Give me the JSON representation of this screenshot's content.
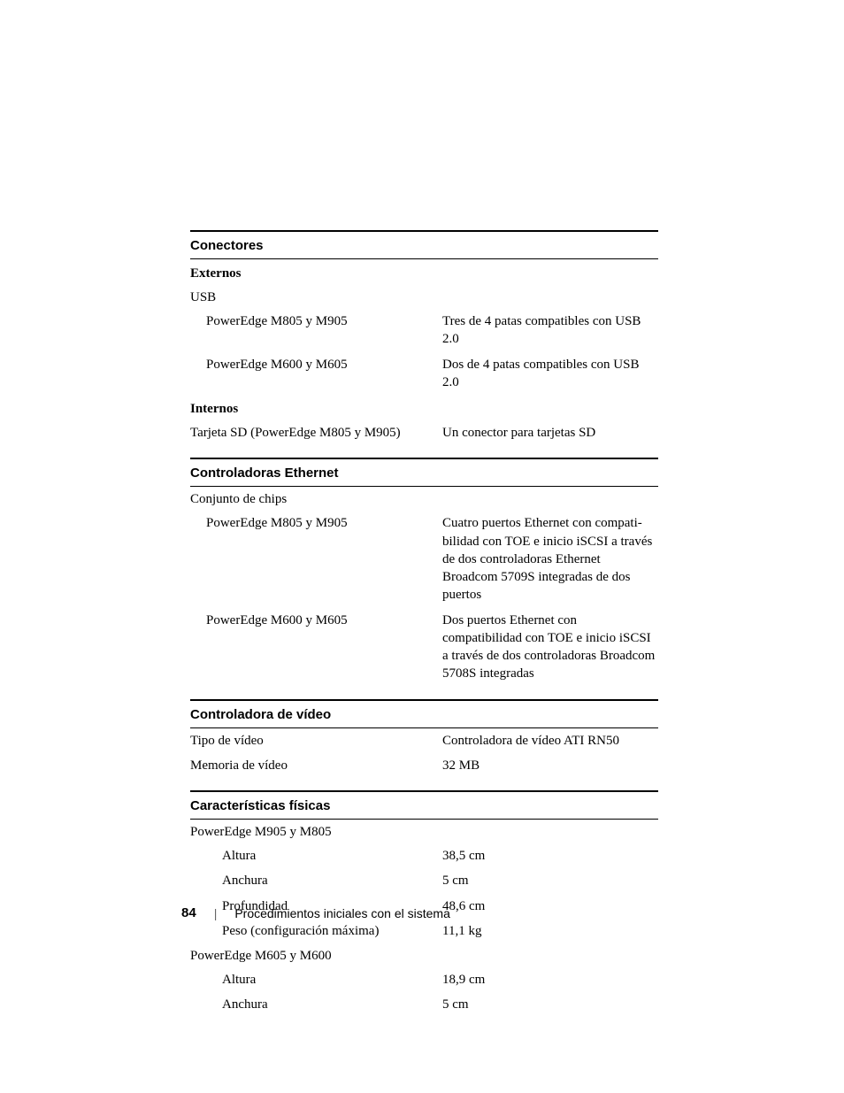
{
  "sections": {
    "conectores": {
      "header": "Conectores",
      "externos_label": "Externos",
      "usb_label": "USB",
      "usb_rows": [
        {
          "left": "PowerEdge M805 y M905",
          "right": "Tres de 4 patas compatibles con USB 2.0"
        },
        {
          "left": "PowerEdge M600 y M605",
          "right": "Dos de 4 patas compatibles con USB 2.0"
        }
      ],
      "internos_label": "Internos",
      "sd_row": {
        "left": "Tarjeta SD (PowerEdge M805 y M905)",
        "right": "Un conector para tarjetas SD"
      }
    },
    "ethernet": {
      "header": "Controladoras Ethernet",
      "chipset_label": "Conjunto de chips",
      "rows": [
        {
          "left": "PowerEdge M805 y M905",
          "right": "Cuatro puertos Ethernet con compati-bilidad con TOE e inicio iSCSI a través de dos controladoras Ethernet Broadcom 5709S integradas de dos puertos"
        },
        {
          "left": "PowerEdge M600 y M605",
          "right": "Dos puertos Ethernet con compatibilidad con TOE e inicio iSCSI a través de dos controladoras Broadcom 5708S integradas"
        }
      ]
    },
    "video": {
      "header": "Controladora de vídeo",
      "rows": [
        {
          "left": "Tipo de vídeo",
          "right": "Controladora de vídeo ATI RN50"
        },
        {
          "left": "Memoria de vídeo",
          "right": "32 MB"
        }
      ]
    },
    "fisicas": {
      "header": "Características físicas",
      "group1_label": "PowerEdge M905 y M805",
      "group1_rows": [
        {
          "left": "Altura",
          "right": "38,5 cm"
        },
        {
          "left": "Anchura",
          "right": "5 cm"
        },
        {
          "left": "Profundidad",
          "right": "48,6 cm"
        },
        {
          "left": "Peso (configuración máxima)",
          "right": "11,1 kg"
        }
      ],
      "group2_label": "PowerEdge M605 y M600",
      "group2_rows": [
        {
          "left": "Altura",
          "right": "18,9 cm"
        },
        {
          "left": "Anchura",
          "right": "5 cm"
        }
      ]
    }
  },
  "footer": {
    "page_number": "84",
    "separator": "|",
    "title": "Procedimientos iniciales con el sistema"
  }
}
